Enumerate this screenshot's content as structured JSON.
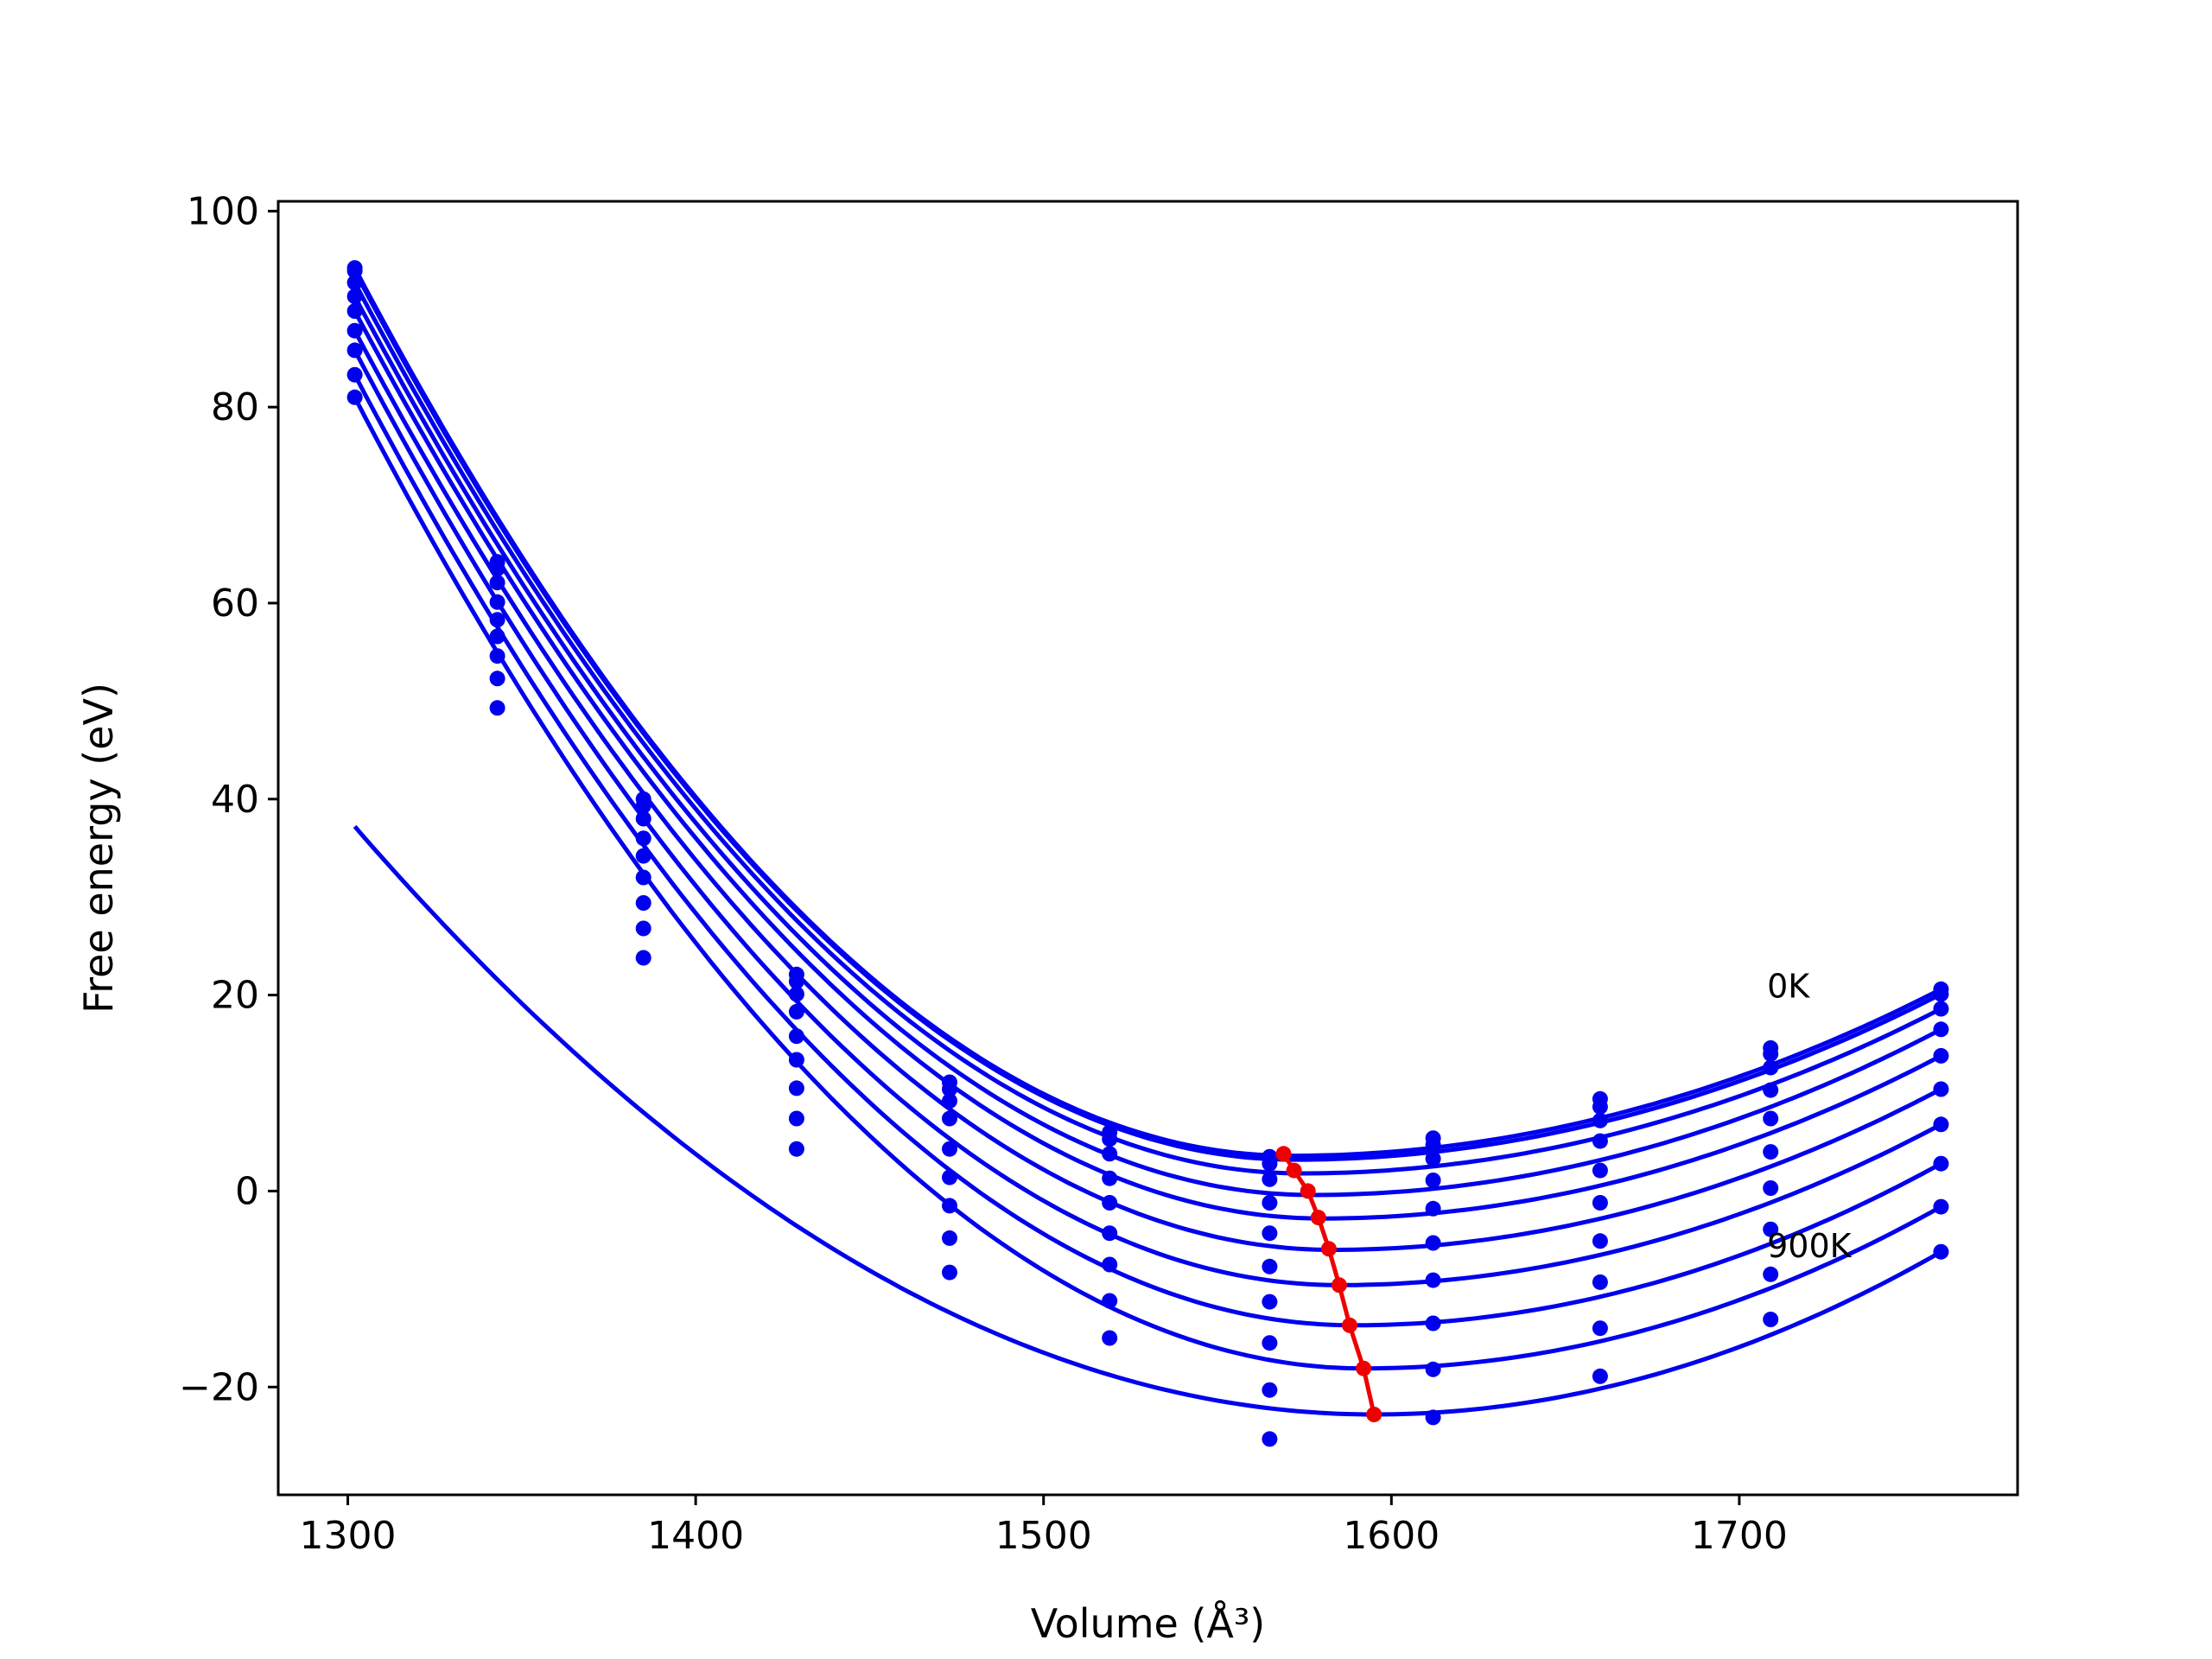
{
  "chart_data": {
    "type": "line",
    "xlabel": "Volume (Å³)",
    "ylabel": "Free energy (eV)",
    "xlim": [
      1280,
      1780
    ],
    "ylim": [
      -31,
      101
    ],
    "x_ticks": [
      1300,
      1400,
      1500,
      1600,
      1700
    ],
    "y_ticks": [
      -20,
      0,
      20,
      40,
      60,
      80,
      100
    ],
    "x_tick_labels": [
      "1300",
      "1400",
      "1500",
      "1600",
      "1700"
    ],
    "y_tick_labels": [
      "−20",
      "0",
      "20",
      "40",
      "60",
      "80",
      "100"
    ],
    "grid": false,
    "legend": "none",
    "annotations": [
      {
        "text": "0K",
        "x": 1708,
        "y": 21
      },
      {
        "text": "900K",
        "x": 1708,
        "y": -5.5
      }
    ],
    "colors": {
      "curves": "#0000ee",
      "minimum_path": "#ee0000",
      "axes": "#000000"
    },
    "volumes": [
      1302,
      1343,
      1385,
      1429,
      1473,
      1519,
      1565,
      1612,
      1660,
      1709,
      1758
    ],
    "series": [
      {
        "points": [
          94.2,
          64.2,
          40.0,
          22.1,
          11.1,
          6.0,
          3.5,
          5.4,
          9.4,
          14.6,
          20.6
        ]
      },
      {
        "points": [
          93.9,
          63.5,
          39.3,
          21.4,
          10.4,
          5.3,
          2.8,
          4.7,
          8.6,
          14.0,
          20.1
        ]
      },
      {
        "points": [
          92.7,
          62.1,
          38.0,
          20.1,
          9.2,
          3.8,
          1.2,
          3.3,
          7.2,
          12.6,
          18.6
        ]
      },
      {
        "points": [
          91.3,
          60.1,
          36.0,
          18.3,
          7.4,
          1.3,
          -1.2,
          1.1,
          5.1,
          10.3,
          16.5
        ]
      },
      {
        "points": [
          89.8,
          58.3,
          34.2,
          15.8,
          4.3,
          -1.2,
          -4.3,
          -1.8,
          2.1,
          7.4,
          13.8
        ]
      },
      {
        "points": [
          87.8,
          56.6,
          32.0,
          13.4,
          1.4,
          -4.3,
          -7.7,
          -5.3,
          -1.2,
          4.0,
          10.4
        ]
      },
      {
        "points": [
          85.8,
          54.6,
          29.4,
          10.5,
          -1.5,
          -7.5,
          -11.3,
          -9.1,
          -5.1,
          0.3,
          6.8
        ]
      },
      {
        "points": [
          83.3,
          52.3,
          26.8,
          7.4,
          -4.8,
          -11.2,
          -15.5,
          -13.5,
          -9.3,
          -3.9,
          2.8
        ]
      },
      {
        "points": [
          81.0,
          49.3,
          23.8,
          4.3,
          -8.3,
          -15.0,
          -20.3,
          -18.2,
          -14.0,
          -8.5,
          -1.6
        ]
      },
      {
        "points": [
          null,
          null,
          null,
          null,
          null,
          null,
          -25.3,
          -23.1,
          -18.9,
          -13.1,
          -6.2
        ]
      }
    ],
    "fits": [
      {
        "center": 1571,
        "min": 3.6,
        "right": 20.6
      },
      {
        "center": 1572,
        "min": 3.2,
        "right": 20.1
      },
      {
        "center": 1574,
        "min": 1.8,
        "right": 18.6
      },
      {
        "center": 1577,
        "min": -0.4,
        "right": 16.5
      },
      {
        "center": 1580,
        "min": -2.8,
        "right": 13.8
      },
      {
        "center": 1583,
        "min": -6.0,
        "right": 10.4
      },
      {
        "center": 1585,
        "min": -9.6,
        "right": 6.8
      },
      {
        "center": 1589,
        "min": -13.7,
        "right": 2.8
      },
      {
        "center": 1592,
        "min": -18.1,
        "right": -1.6
      },
      {
        "center": 1595,
        "min": -22.8,
        "right": -6.2
      }
    ],
    "minimum_path": {
      "x": [
        1569,
        1572,
        1576,
        1579,
        1582,
        1585,
        1588,
        1592,
        1595
      ],
      "y": [
        3.8,
        2.1,
        0.0,
        -2.7,
        -5.9,
        -9.6,
        -13.7,
        -18.1,
        -22.8
      ]
    }
  }
}
